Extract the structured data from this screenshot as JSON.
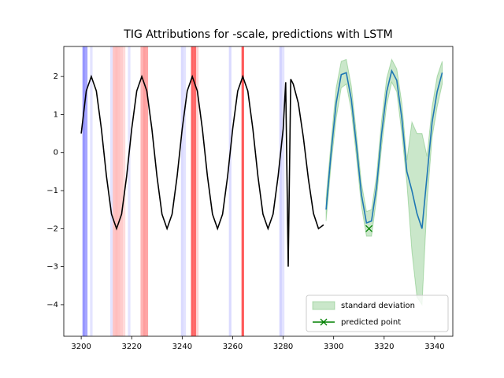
{
  "chart_data": {
    "type": "line",
    "title": "TIG Attributions for -scale, predictions with LSTM",
    "xlim": [
      3193.1,
      3347.2
    ],
    "ylim": [
      -4.83,
      2.79
    ],
    "xticks": [
      3200,
      3220,
      3240,
      3260,
      3280,
      3300,
      3320,
      3340
    ],
    "yticks": [
      {
        "value": -4,
        "label": "−4"
      },
      {
        "value": -3,
        "label": "−3"
      },
      {
        "value": -2,
        "label": "−2"
      },
      {
        "value": -1,
        "label": "−1"
      },
      0,
      1,
      2
    ],
    "legend": "lower right",
    "attributions": {
      "positive_color": "#ff0000",
      "negative_color": "#0000ff",
      "x": [
        3201,
        3202,
        3204,
        3212,
        3213,
        3214,
        3215,
        3216,
        3217,
        3219,
        3224,
        3225,
        3226,
        3240,
        3241,
        3244,
        3245,
        3246,
        3259,
        3264,
        3279,
        3280
      ],
      "values": [
        -0.6,
        -0.5,
        -0.1,
        -0.1,
        0.3,
        0.35,
        0.3,
        0.25,
        0.15,
        -0.1,
        0.4,
        0.55,
        0.5,
        -0.15,
        -0.1,
        0.95,
        0.9,
        0.2,
        -0.15,
        1.0,
        -0.2,
        -0.1
      ]
    },
    "series": [
      {
        "color": "#000000",
        "x": [
          3200,
          3202,
          3204,
          3206,
          3208,
          3210,
          3212,
          3214,
          3216,
          3218,
          3220,
          3222,
          3224,
          3226,
          3228,
          3230,
          3232,
          3234,
          3236,
          3238,
          3240,
          3242,
          3244,
          3246,
          3248,
          3250,
          3252,
          3254,
          3256,
          3258,
          3260,
          3262,
          3264,
          3266,
          3268,
          3270,
          3272,
          3274,
          3276,
          3278,
          3280,
          3281,
          3282,
          3283,
          3284,
          3286,
          3288,
          3290,
          3292,
          3294,
          3296
        ],
        "values": [
          0.5,
          1.62,
          2,
          1.62,
          0.62,
          -0.62,
          -1.62,
          -2,
          -1.62,
          -0.62,
          0.62,
          1.62,
          2,
          1.62,
          0.62,
          -0.62,
          -1.62,
          -2,
          -1.62,
          -0.62,
          0.62,
          1.62,
          2,
          1.62,
          0.62,
          -0.62,
          -1.62,
          -2,
          -1.62,
          -0.62,
          0.62,
          1.62,
          2,
          1.62,
          0.62,
          -0.62,
          -1.62,
          -2,
          -1.62,
          -0.62,
          0.62,
          1.85,
          -3,
          1.93,
          1.8,
          1.3,
          0.4,
          -0.7,
          -1.6,
          -2,
          -1.9
        ]
      },
      {
        "color": "#1f77b4",
        "x": [
          3297,
          3299,
          3301,
          3303,
          3305,
          3307,
          3309,
          3311,
          3313,
          3315,
          3317,
          3319,
          3321,
          3323,
          3325,
          3327,
          3329,
          3331,
          3333,
          3335,
          3337,
          3339,
          3341,
          3343
        ],
        "values": [
          -1.5,
          0.0,
          1.3,
          2.05,
          2.1,
          1.4,
          0.2,
          -1.1,
          -1.85,
          -1.8,
          -0.9,
          0.5,
          1.6,
          2.15,
          1.9,
          0.9,
          -0.5,
          -1.0,
          -1.6,
          -2.0,
          -0.6,
          0.8,
          1.6,
          2.1
        ]
      }
    ],
    "band": {
      "name": "standard deviation",
      "color": "#2ca02c",
      "x": [
        3297,
        3299,
        3301,
        3303,
        3305,
        3307,
        3309,
        3311,
        3313,
        3315,
        3317,
        3319,
        3321,
        3323,
        3325,
        3327,
        3329,
        3331,
        3333,
        3335,
        3337,
        3339,
        3341,
        3343
      ],
      "upper": [
        -1.2,
        0.3,
        1.7,
        2.4,
        2.45,
        1.75,
        0.5,
        -0.8,
        -1.55,
        -1.5,
        -0.6,
        0.85,
        1.95,
        2.45,
        2.2,
        1.3,
        -0.2,
        0.8,
        0.5,
        0.5,
        -0.1,
        1.2,
        2.0,
        2.4
      ],
      "lower": [
        -1.8,
        -0.3,
        0.9,
        1.7,
        1.8,
        1.1,
        -0.1,
        -1.4,
        -2.2,
        -2.2,
        -1.2,
        0.15,
        1.25,
        1.85,
        1.6,
        0.5,
        -0.8,
        -2.6,
        -3.8,
        -4.0,
        -1.3,
        0.4,
        1.2,
        1.8
      ]
    },
    "predicted_point": {
      "name": "predicted point",
      "color": "#008000",
      "x": 3314,
      "y": -2
    }
  }
}
